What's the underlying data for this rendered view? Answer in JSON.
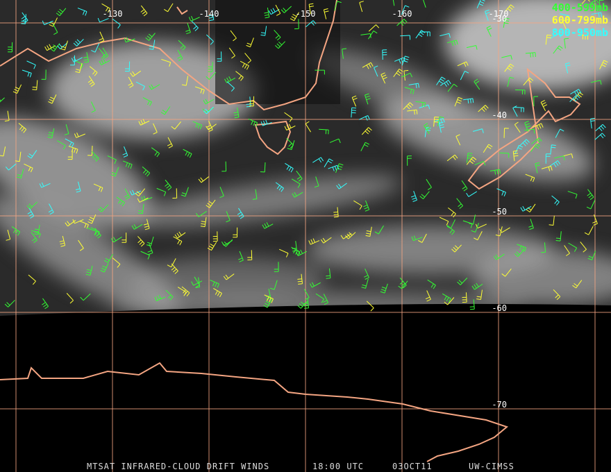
{
  "map": {
    "longitude_labels": [
      -130,
      -140,
      -150,
      -160,
      -170
    ],
    "latitude_labels": [
      -30,
      -40,
      -50,
      -60,
      -70
    ],
    "legend": [
      {
        "label": "400-599mb",
        "color": "#33ff33"
      },
      {
        "label": "600-799mb",
        "color": "#ffff33"
      },
      {
        "label": "800-950mb",
        "color": "#33ffff"
      }
    ],
    "footer": {
      "product": "MTSAT INFRARED-CLOUD DRIFT WINDS",
      "time": "18:00 UTC",
      "date": "03OCT11",
      "source": "UW-CIMSS"
    }
  }
}
